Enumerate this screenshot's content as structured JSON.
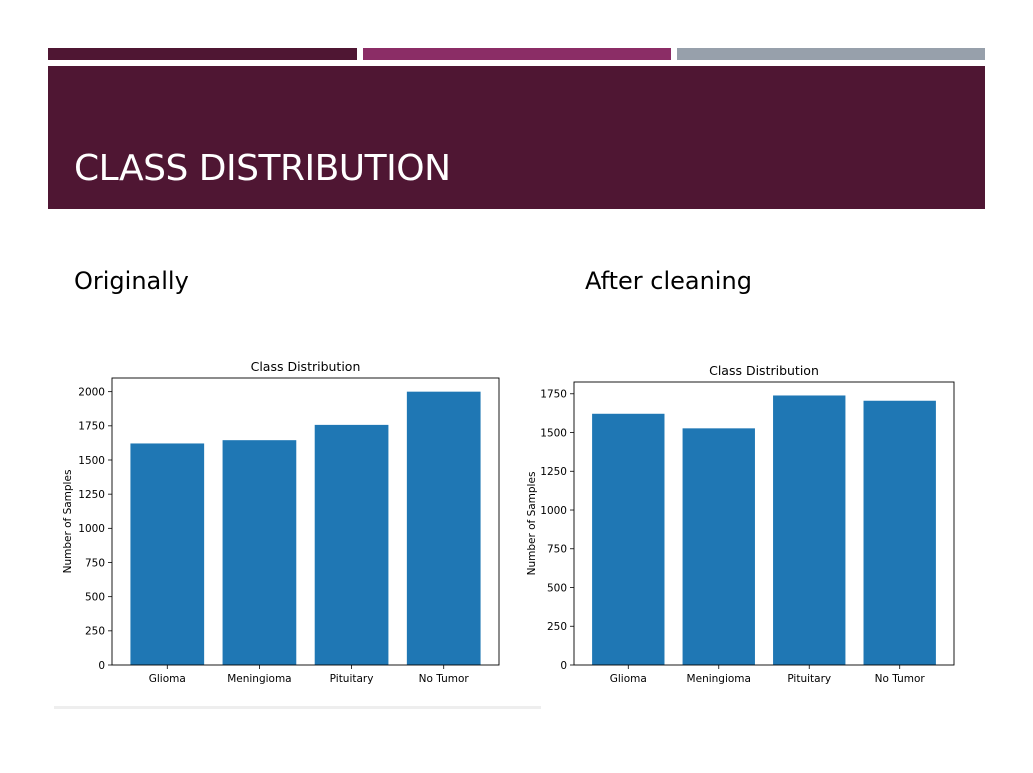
{
  "slide": {
    "title": "CLASS DISTRIBUTION",
    "left_heading": "Originally",
    "right_heading": "After cleaning"
  },
  "colors": {
    "stripe_1": "#4f1633",
    "stripe_2": "#8b2d66",
    "stripe_3": "#97a0ab",
    "title_bar": "#4f1633",
    "bar": "#1f77b4"
  },
  "chart_data": [
    {
      "type": "bar",
      "title": "Class Distribution",
      "xlabel": "",
      "ylabel": "Number of Samples",
      "categories": [
        "Glioma",
        "Meningioma",
        "Pituitary",
        "No Tumor"
      ],
      "values": [
        1621,
        1645,
        1757,
        2000
      ],
      "ylim": [
        0,
        2100
      ],
      "yticks": [
        0,
        250,
        500,
        750,
        1000,
        1250,
        1500,
        1750,
        2000
      ],
      "grid": false,
      "legend": "none"
    },
    {
      "type": "bar",
      "title": "Class Distribution",
      "xlabel": "",
      "ylabel": "Number of Samples",
      "categories": [
        "Glioma",
        "Meningioma",
        "Pituitary",
        "No Tumor"
      ],
      "values": [
        1621,
        1527,
        1739,
        1705
      ],
      "ylim": [
        0,
        1826
      ],
      "yticks": [
        0,
        250,
        500,
        750,
        1000,
        1250,
        1500,
        1750
      ],
      "grid": false,
      "legend": "none"
    }
  ]
}
